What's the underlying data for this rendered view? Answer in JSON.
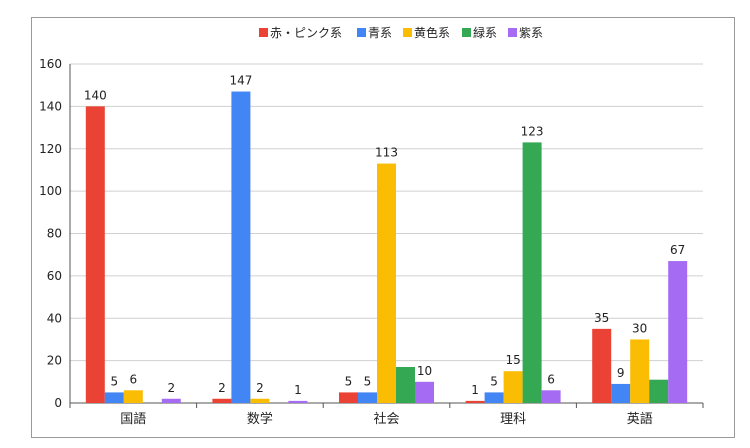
{
  "chart_data": {
    "type": "bar",
    "categories": [
      "国語",
      "数学",
      "社会",
      "理科",
      "英語"
    ],
    "series": [
      {
        "name": "赤・ピンク系",
        "color": "#ea4335",
        "values": [
          140,
          2,
          5,
          1,
          35
        ]
      },
      {
        "name": "青系",
        "color": "#4285f4",
        "values": [
          5,
          147,
          5,
          5,
          9
        ]
      },
      {
        "name": "黄色系",
        "color": "#fbbc04",
        "values": [
          6,
          2,
          113,
          15,
          30
        ]
      },
      {
        "name": "緑系",
        "color": "#34a853",
        "values": [
          null,
          null,
          17,
          123,
          11
        ]
      },
      {
        "name": "紫系",
        "color": "#a56cf3",
        "values": [
          2,
          1,
          10,
          6,
          67
        ]
      }
    ],
    "data_labels": [
      [
        140,
        2,
        5,
        1,
        35
      ],
      [
        5,
        147,
        5,
        5,
        9
      ],
      [
        6,
        2,
        113,
        15,
        30
      ],
      [
        null,
        null,
        null,
        123,
        null
      ],
      [
        2,
        1,
        10,
        6,
        67
      ]
    ],
    "ylim": [
      0,
      160
    ],
    "yticks": [
      0,
      20,
      40,
      60,
      80,
      100,
      120,
      140,
      160
    ],
    "grid": true,
    "legend_position": "top"
  }
}
